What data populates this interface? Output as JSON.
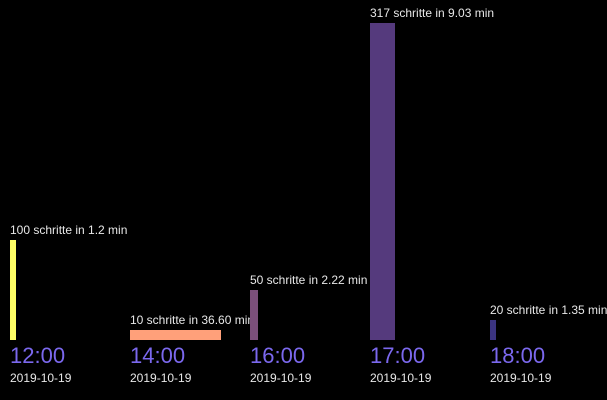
{
  "chart_data": {
    "type": "bar",
    "baseline_value": 0,
    "max_steps": 317,
    "time_color": "#7b68ee",
    "groups": [
      {
        "time": "12:00",
        "date": "2019-10-19",
        "steps": 100,
        "duration_min": 1.2,
        "label": "100 schritte in 1.2 min",
        "color": "#ffff66"
      },
      {
        "time": "14:00",
        "date": "2019-10-19",
        "steps": 10,
        "duration_min": 36.6,
        "label": "10 schritte in 36.60 min",
        "color": "#ffa07a"
      },
      {
        "time": "16:00",
        "date": "2019-10-19",
        "steps": 50,
        "duration_min": 2.22,
        "label": "50 schritte in 2.22 min",
        "color": "#7b4f7a"
      },
      {
        "time": "17:00",
        "date": "2019-10-19",
        "steps": 317,
        "duration_min": 9.03,
        "label": "317 schritte in 9.03 min",
        "color": "#553a7d"
      },
      {
        "time": "18:00",
        "date": "2019-10-19",
        "steps": 20,
        "duration_min": 1.35,
        "label": "20 schritte in 1.35 min",
        "color": "#3b3480"
      }
    ]
  }
}
